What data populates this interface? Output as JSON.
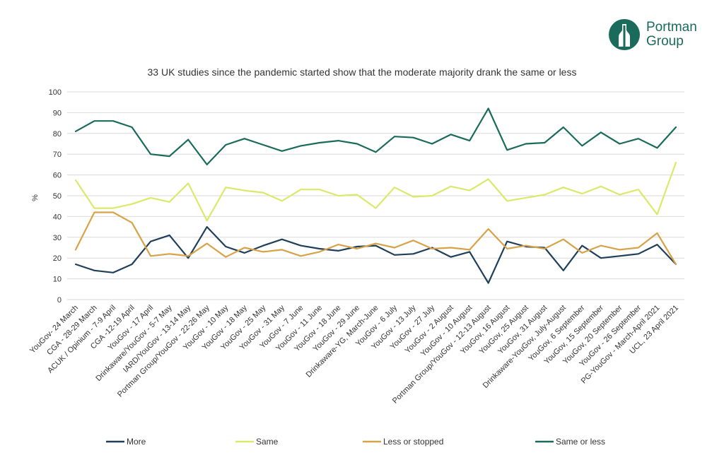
{
  "logo": {
    "line1": "Portman",
    "line2": "Group",
    "color": "#1a6b5c"
  },
  "chart_data": {
    "type": "line",
    "title": "33 UK studies since the pandemic started show that the moderate majority drank the same or less",
    "ylabel": "%",
    "xlabel": "",
    "ylim": [
      0,
      100
    ],
    "yticks": [
      0,
      10,
      20,
      30,
      40,
      50,
      60,
      70,
      80,
      90,
      100
    ],
    "grid": true,
    "legend_position": "bottom",
    "categories": [
      "YouGov- 24 March",
      "CGA - 28-29 March",
      "ACUK / Opinium - 7-9 April",
      "CGA -12-19 April",
      "YouGov - 17 April",
      "Drinkaware/YouGov - 5-7 May",
      "IARD/YouGov - 13-14 May",
      "Portman Group/YouGov - 22-26 May",
      "YouGov - 10 May",
      "YouGov - 18 May",
      "YouGov - 25 May",
      "YouGov - 31 May",
      "YouGov - 7 June",
      "YouGov - 11 June",
      "YouGov - 18 June",
      "YouGov - 29 June",
      "Drinkaware-YG, March-June",
      "YouGov - 6 July",
      "YouGov - 13 July",
      "YouGov - 27 July",
      "YouGov - 2 August",
      "YouGov - 10 August",
      "Portman Group/YouGov - 12-13 August",
      "YouGov, 16 August",
      "YouGov, 25 August",
      "YouGov, 31 August",
      "Drinkaware-YouGov, July-August",
      "YouGov, 6 September",
      "YouGov, 15 September",
      "YouGov, 20 September",
      "YouGov - 26 September",
      "PG-YouGov - March-April 2021",
      "UCL, 23 April 2021"
    ],
    "series": [
      {
        "name": "More",
        "color": "#1f3f5b",
        "values": [
          17,
          14,
          13,
          17,
          28,
          31,
          20,
          35,
          25.5,
          22.5,
          26,
          29,
          26,
          24.5,
          23.5,
          25.5,
          26,
          21.5,
          22,
          25,
          20.5,
          23,
          8,
          28,
          25.5,
          25,
          14,
          26,
          20,
          21,
          22,
          26.5,
          17
        ]
      },
      {
        "name": "Same",
        "color": "#dbe96a",
        "values": [
          57.5,
          44,
          44,
          46,
          49,
          47,
          56,
          38,
          54,
          52.5,
          51.5,
          47.5,
          53,
          53,
          50,
          50.5,
          44,
          54,
          49.5,
          50,
          54.5,
          52.5,
          58,
          47.5,
          49,
          50.5,
          54,
          51,
          54.5,
          50.5,
          53,
          41,
          66
        ]
      },
      {
        "name": "Less or stopped",
        "color": "#d8a248",
        "values": [
          24,
          42,
          42,
          37,
          21,
          22,
          21,
          27,
          20.5,
          25,
          23,
          24,
          21,
          23,
          26.5,
          24.5,
          27,
          25,
          28.5,
          24.5,
          25,
          24,
          34,
          24.5,
          26,
          24.5,
          29,
          22.5,
          26,
          24,
          25,
          32,
          17
        ]
      },
      {
        "name": "Same or less",
        "color": "#1a6b5c",
        "values": [
          81,
          86,
          86,
          83,
          70,
          69,
          77,
          65,
          74.5,
          77.5,
          74.5,
          71.5,
          74,
          75.5,
          76.5,
          75,
          71,
          78.5,
          78,
          75,
          79.5,
          76.5,
          92,
          72,
          75,
          75.5,
          83,
          74,
          80.5,
          75,
          77.5,
          73,
          83
        ]
      }
    ]
  }
}
